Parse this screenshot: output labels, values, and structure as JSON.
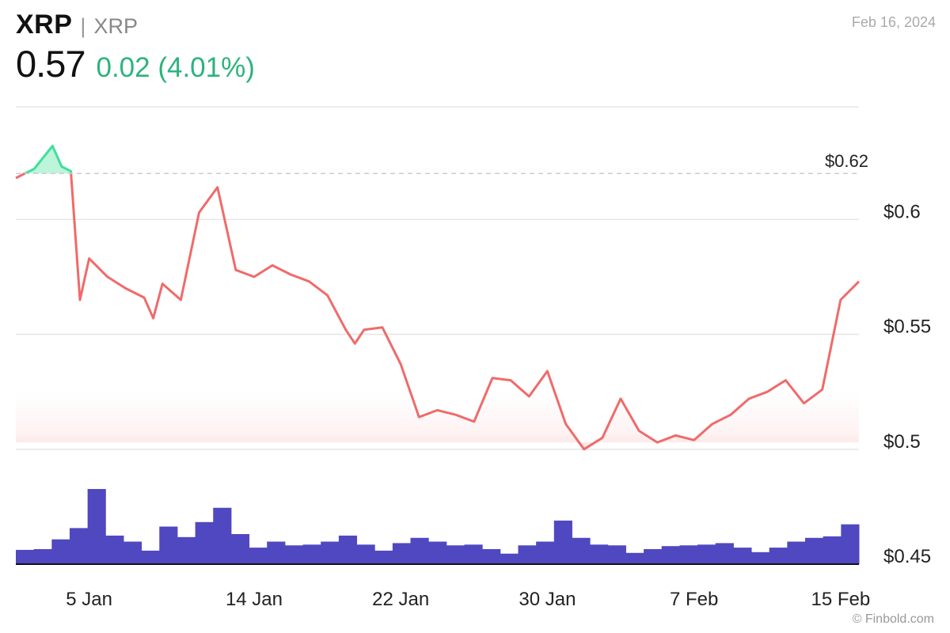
{
  "header": {
    "symbol": "XRP",
    "separator": "|",
    "name": "XRP",
    "price": "0.57",
    "change": "0.02 (4.01%)",
    "date": "Feb 16, 2024"
  },
  "footer": {
    "credit": "© Finbold.com"
  },
  "colors": {
    "above_ref": "#3fe09a",
    "below_ref": "#f06a6a",
    "volume": "#5048c0",
    "change_positive": "#2db37c",
    "gridline": "#e6e6e6"
  },
  "chart_data": {
    "type": "line",
    "reference_line": {
      "value": 0.62,
      "label": "$0.62"
    },
    "x_ticks": [
      "5 Jan",
      "14 Jan",
      "22 Jan",
      "30 Jan",
      "7 Feb",
      "15 Feb"
    ],
    "y_ticks": [
      {
        "value": 0.6,
        "label": "$0.6"
      },
      {
        "value": 0.55,
        "label": "$0.55"
      },
      {
        "value": 0.5,
        "label": "$0.5"
      },
      {
        "value": 0.45,
        "label": "$0.45"
      }
    ],
    "ylim": [
      0.45,
      0.649
    ],
    "grid": true,
    "x_start": "Jan 1",
    "x_end": "Feb 16",
    "price_series": {
      "name": "XRP",
      "x": [
        "Jan 1",
        "Jan 2",
        "Jan 3",
        "Jan 3",
        "Jan 4",
        "Jan 4",
        "Jan 5",
        "Jan 6",
        "Jan 7",
        "Jan 8",
        "Jan 8",
        "Jan 9",
        "Jan 10",
        "Jan 11",
        "Jan 12",
        "Jan 12",
        "Jan 13",
        "Jan 14",
        "Jan 15",
        "Jan 16",
        "Jan 17",
        "Jan 18",
        "Jan 19",
        "Jan 19",
        "Jan 20",
        "Jan 21",
        "Jan 22",
        "Jan 23",
        "Jan 24",
        "Jan 25",
        "Jan 26",
        "Jan 27",
        "Jan 28",
        "Jan 29",
        "Jan 30",
        "Jan 31",
        "Feb 1",
        "Feb 2",
        "Feb 3",
        "Feb 4",
        "Feb 5",
        "Feb 6",
        "Feb 7",
        "Feb 8",
        "Feb 9",
        "Feb 10",
        "Feb 11",
        "Feb 12",
        "Feb 13",
        "Feb 14",
        "Feb 15",
        "Feb 16"
      ],
      "y": [
        0.618,
        0.622,
        0.632,
        0.623,
        0.621,
        0.565,
        0.583,
        0.575,
        0.57,
        0.566,
        0.557,
        0.572,
        0.565,
        0.603,
        0.614,
        0.596,
        0.578,
        0.575,
        0.58,
        0.576,
        0.573,
        0.567,
        0.552,
        0.546,
        0.552,
        0.553,
        0.537,
        0.514,
        0.517,
        0.515,
        0.512,
        0.531,
        0.53,
        0.523,
        0.534,
        0.511,
        0.5,
        0.505,
        0.522,
        0.508,
        0.503,
        0.506,
        0.504,
        0.511,
        0.515,
        0.522,
        0.525,
        0.53,
        0.52,
        0.526,
        0.565,
        0.573
      ]
    },
    "volume_series": {
      "name": "Volume",
      "x": [
        "Jan 1",
        "Jan 2",
        "Jan 3",
        "Jan 4",
        "Jan 5",
        "Jan 6",
        "Jan 7",
        "Jan 8",
        "Jan 9",
        "Jan 10",
        "Jan 11",
        "Jan 12",
        "Jan 13",
        "Jan 14",
        "Jan 15",
        "Jan 16",
        "Jan 17",
        "Jan 18",
        "Jan 19",
        "Jan 20",
        "Jan 21",
        "Jan 22",
        "Jan 23",
        "Jan 24",
        "Jan 25",
        "Jan 26",
        "Jan 27",
        "Jan 28",
        "Jan 29",
        "Jan 30",
        "Jan 31",
        "Feb 1",
        "Feb 2",
        "Feb 3",
        "Feb 4",
        "Feb 5",
        "Feb 6",
        "Feb 7",
        "Feb 8",
        "Feb 9",
        "Feb 10",
        "Feb 11",
        "Feb 12",
        "Feb 13",
        "Feb 14",
        "Feb 15",
        "Feb 16"
      ],
      "relative": [
        0.19,
        0.2,
        0.33,
        0.48,
        1.0,
        0.38,
        0.3,
        0.18,
        0.5,
        0.36,
        0.56,
        0.75,
        0.4,
        0.22,
        0.3,
        0.25,
        0.26,
        0.3,
        0.38,
        0.26,
        0.18,
        0.28,
        0.35,
        0.3,
        0.25,
        0.26,
        0.2,
        0.14,
        0.25,
        0.3,
        0.58,
        0.35,
        0.26,
        0.25,
        0.15,
        0.2,
        0.24,
        0.25,
        0.26,
        0.28,
        0.22,
        0.16,
        0.22,
        0.3,
        0.35,
        0.37,
        0.53
      ]
    }
  }
}
